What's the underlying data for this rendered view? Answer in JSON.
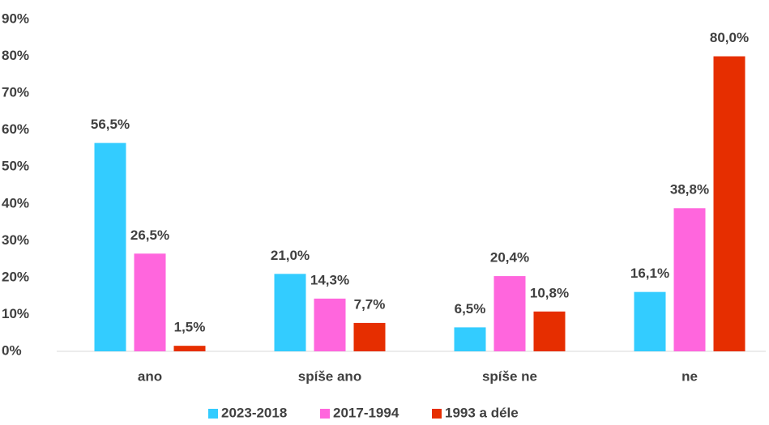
{
  "chart_data": {
    "type": "bar",
    "categories": [
      "ano",
      "spíše ano",
      "spíše ne",
      "ne"
    ],
    "series": [
      {
        "name": "2023-2018",
        "color": "#33ccff",
        "values": [
          56.5,
          21.0,
          6.5,
          16.1
        ],
        "value_labels": [
          "56,5%",
          "21,0%",
          "6,5%",
          "16,1%"
        ]
      },
      {
        "name": "2017-1994",
        "color": "#ff66dd",
        "values": [
          26.5,
          14.3,
          20.4,
          38.8
        ],
        "value_labels": [
          "26,5%",
          "14,3%",
          "20,4%",
          "38,8%"
        ]
      },
      {
        "name": "1993 a déle",
        "color": "#e62e00",
        "values": [
          1.5,
          7.7,
          10.8,
          80.0
        ],
        "value_labels": [
          "1,5%",
          "7,7%",
          "10,8%",
          "80,0%"
        ]
      }
    ],
    "ylim": [
      0,
      90
    ],
    "yticks": [
      {
        "value": 0,
        "label": "0%"
      },
      {
        "value": 10,
        "label": "10%"
      },
      {
        "value": 20,
        "label": "20%"
      },
      {
        "value": 30,
        "label": "30%"
      },
      {
        "value": 40,
        "label": "40%"
      },
      {
        "value": 50,
        "label": "50%"
      },
      {
        "value": 60,
        "label": "60%"
      },
      {
        "value": 70,
        "label": "70%"
      },
      {
        "value": 80,
        "label": "80%"
      },
      {
        "value": 90,
        "label": "90%"
      }
    ],
    "legend": "bottom"
  }
}
